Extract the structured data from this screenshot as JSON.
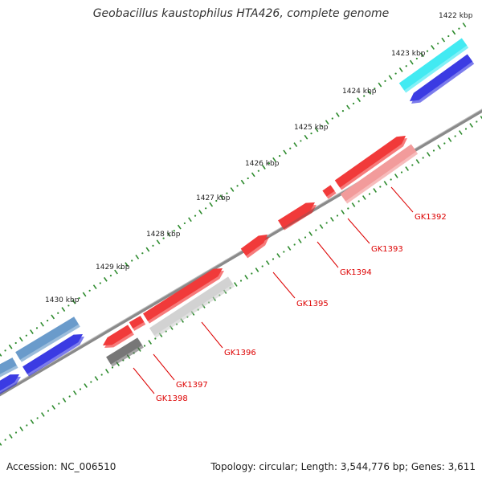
{
  "title": "Geobacillus kaustophilus HTA426, complete genome",
  "footer": {
    "accession": "Accession: NC_006510",
    "summary": "Topology: circular; Length: 3,544,776 bp; Genes: 3,611"
  },
  "colors": {
    "backbone": "#8a8a8a",
    "tick": "#2e8b2e",
    "gene_label": "#dd0000",
    "cyan": "#19e6f0",
    "blue": "#1010dd",
    "steel": "#4a86c0",
    "red": "#ee0f0f",
    "pink": "#f08585",
    "lightgray": "#c8c8c8",
    "darkgray": "#5a5a5a"
  },
  "scale_labels": [
    "1422 kbp",
    "1423 kbp",
    "1424 kbp",
    "1425 kbp",
    "1426 kbp",
    "1427 kbp",
    "1428 kbp",
    "1429 kbp",
    "1430 kbp"
  ],
  "gene_labels": [
    "GK1392",
    "GK1393",
    "GK1394",
    "GK1395",
    "GK1396",
    "GK1397",
    "GK1398"
  ]
}
